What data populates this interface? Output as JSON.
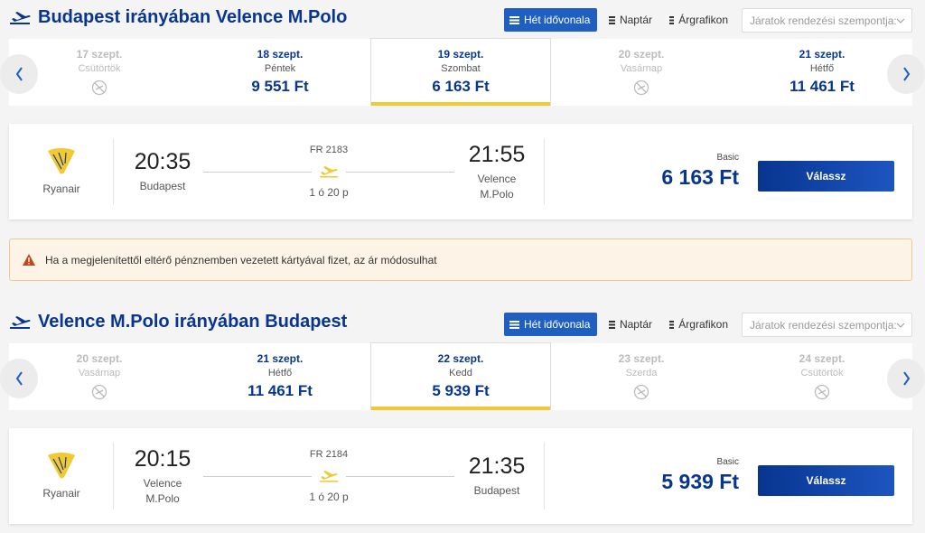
{
  "sections": [
    {
      "title": "Budapest irányában Velence M.Polo",
      "view_buttons": [
        "Hét idővonala",
        "Naptár",
        "Árgrafikon"
      ],
      "sort_placeholder": "Járatok rendezési szempontja:",
      "selected_day": 2,
      "days": [
        {
          "date": "17 szept.",
          "weekday": "Csütörtök"
        },
        {
          "date": "18 szept.",
          "weekday": "Péntek",
          "price": "9 551 Ft"
        },
        {
          "date": "19 szept.",
          "weekday": "Szombat",
          "price": "6 163 Ft"
        },
        {
          "date": "20 szept.",
          "weekday": "Vasárnap"
        },
        {
          "date": "21 szept.",
          "weekday": "Hétfő",
          "price": "11 461 Ft"
        }
      ],
      "flight": {
        "airline": "Ryanair",
        "dep_time": "20:35",
        "dep_city": "Budapest",
        "flight_no": "FR 2183",
        "duration": "1 ó 20 p",
        "arr_time": "21:55",
        "arr_city": "Velence M.Polo",
        "fare": "Basic",
        "price": "6 163 Ft",
        "button": "Válassz"
      }
    },
    {
      "title": "Velence M.Polo irányában Budapest",
      "view_buttons": [
        "Hét idővonala",
        "Naptár",
        "Árgrafikon"
      ],
      "sort_placeholder": "Járatok rendezési szempontja:",
      "selected_day": 2,
      "days": [
        {
          "date": "20 szept.",
          "weekday": "Vasárnap"
        },
        {
          "date": "21 szept.",
          "weekday": "Hétfő",
          "price": "11 461 Ft"
        },
        {
          "date": "22 szept.",
          "weekday": "Kedd",
          "price": "5 939 Ft"
        },
        {
          "date": "23 szept.",
          "weekday": "Szerda"
        },
        {
          "date": "24 szept.",
          "weekday": "Csütörtök"
        }
      ],
      "flight": {
        "airline": "Ryanair",
        "dep_time": "20:15",
        "dep_city": "Velence M.Polo",
        "flight_no": "FR 2184",
        "duration": "1 ó 20 p",
        "arr_time": "21:35",
        "arr_city": "Budapest",
        "fare": "Basic",
        "price": "5 939 Ft",
        "button": "Válassz"
      }
    }
  ],
  "notice": "Ha a megjelenítettől eltérő pénznemben vezetett kártyával fizet, az ár módosulhat"
}
